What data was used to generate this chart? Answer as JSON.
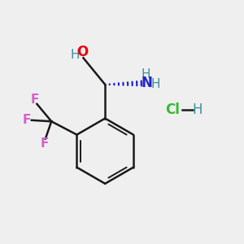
{
  "bg_color": "#efefef",
  "bond_color": "#1a1a1a",
  "oxygen_color": "#e8000d",
  "nitrogen_color": "#3b9199",
  "nitrogen_dark": "#2222cc",
  "fluorine_color": "#d45fce",
  "chlorine_color": "#33bb33",
  "hydrogen_color": "#3b9199",
  "fig_size": [
    3.0,
    3.0
  ],
  "dpi": 100,
  "xlim": [
    0,
    10
  ],
  "ylim": [
    0,
    10
  ]
}
